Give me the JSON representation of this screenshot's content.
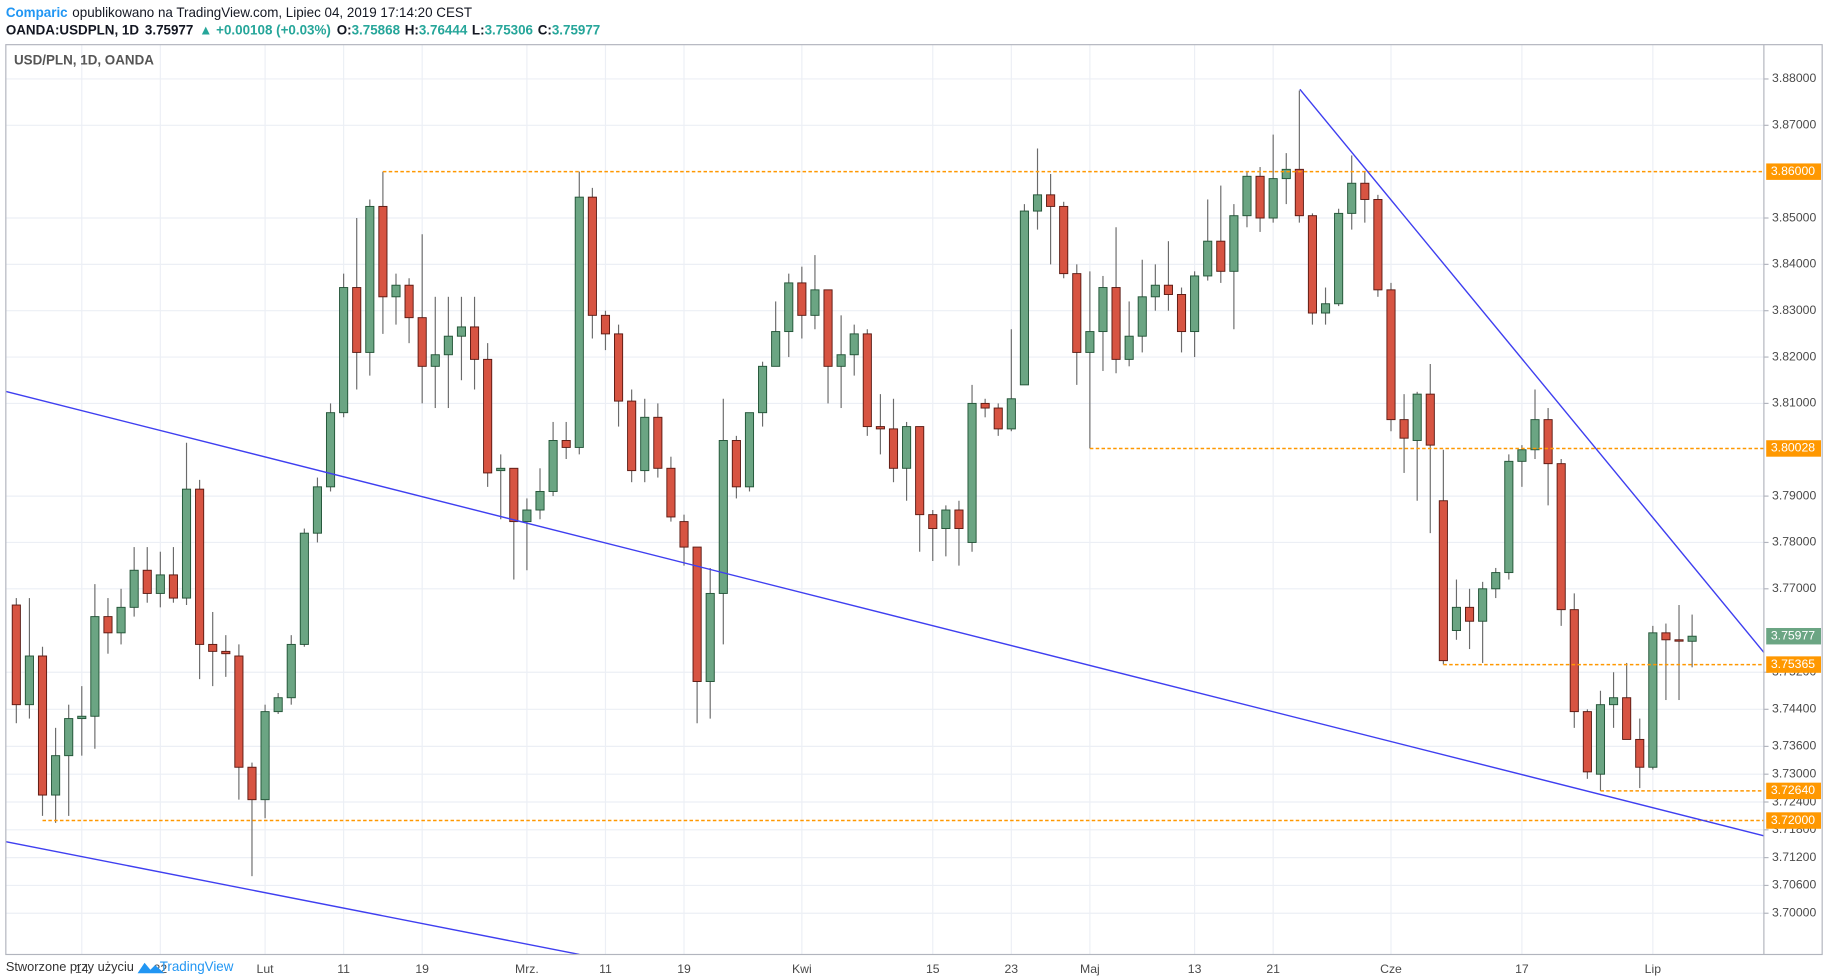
{
  "header": {
    "brand": "Comparic",
    "published": "opublikowano na TradingView.com, Lipiec 04, 2019 17:14:20 CEST",
    "symbol": "OANDA:USDPLN, 1D",
    "change": "▲ +0.00108 (+0.03%)",
    "o": "O:",
    "h": "H:",
    "l": "L:",
    "c": "C:"
  },
  "footer": {
    "text": "Stworzone przy użyciu",
    "logo": "TradingView"
  },
  "chart_data": {
    "type": "candlestick",
    "title": "USD/PLN, 1D, OANDA",
    "categories": [
      null,
      null,
      null,
      null,
      null,
      "14",
      null,
      null,
      null,
      null,
      null,
      "22",
      null,
      null,
      null,
      null,
      null,
      null,
      null,
      "Lut",
      null,
      null,
      null,
      null,
      null,
      "11",
      null,
      null,
      null,
      null,
      null,
      "19",
      null,
      null,
      null,
      null,
      null,
      null,
      null,
      "Mrz.",
      null,
      null,
      null,
      null,
      null,
      "11",
      null,
      null,
      null,
      null,
      null,
      "19",
      null,
      null,
      null,
      null,
      null,
      null,
      null,
      null,
      "Kwi",
      null,
      null,
      null,
      null,
      null,
      null,
      null,
      null,
      null,
      "15",
      null,
      null,
      null,
      null,
      null,
      "23",
      null,
      null,
      null,
      null,
      null,
      "Maj",
      null,
      null,
      null,
      null,
      null,
      null,
      null,
      "13",
      null,
      null,
      null,
      null,
      null,
      "21",
      null,
      null,
      null,
      null,
      null,
      null,
      null,
      null,
      "Cze",
      null,
      null,
      null,
      null,
      null,
      null,
      null,
      null,
      null,
      "17",
      null,
      null,
      null,
      null,
      null,
      null,
      null,
      null,
      null,
      "Lip",
      null,
      null,
      null
    ],
    "open": [
      3.7665,
      3.745,
      3.7555,
      3.7255,
      3.734,
      3.742,
      3.7425,
      3.764,
      3.7605,
      3.766,
      3.774,
      3.769,
      3.773,
      3.768,
      3.7915,
      3.758,
      3.7565,
      3.7555,
      3.7315,
      3.7245,
      3.7435,
      3.7465,
      3.758,
      3.782,
      3.792,
      3.808,
      3.835,
      3.821,
      3.8525,
      3.833,
      3.8355,
      3.8285,
      3.818,
      3.8205,
      3.8245,
      3.8265,
      3.8195,
      3.7955,
      3.796,
      3.7845,
      3.787,
      3.791,
      3.802,
      3.8005,
      3.8545,
      3.829,
      3.825,
      3.8105,
      3.7955,
      3.807,
      3.796,
      3.7845,
      3.779,
      3.75,
      3.769,
      3.802,
      3.792,
      3.808,
      3.818,
      3.8255,
      3.836,
      3.829,
      3.8345,
      3.818,
      3.8205,
      3.825,
      3.805,
      3.8045,
      3.796,
      3.805,
      3.786,
      3.783,
      3.787,
      3.78,
      3.81,
      3.809,
      3.8045,
      3.814,
      3.8515,
      3.855,
      3.8525,
      3.838,
      3.821,
      3.8255,
      3.835,
      3.8195,
      3.8245,
      3.833,
      3.8355,
      3.8335,
      3.8255,
      3.8375,
      3.845,
      3.8385,
      3.8505,
      3.859,
      3.85,
      3.8585,
      3.8605,
      3.8505,
      3.8295,
      3.8315,
      3.851,
      3.8575,
      3.854,
      3.8345,
      3.8065,
      3.802,
      3.812,
      3.789,
      3.761,
      3.766,
      3.763,
      3.77,
      3.7735,
      3.7975,
      3.8,
      3.8065,
      3.797,
      3.7655,
      3.7435,
      3.73,
      3.745,
      3.7465,
      3.7375,
      3.7315,
      3.7605,
      3.759,
      3.75868
    ],
    "high": [
      3.768,
      3.768,
      3.7575,
      3.74,
      3.745,
      3.749,
      3.771,
      3.768,
      3.77,
      3.779,
      3.779,
      3.778,
      3.779,
      3.8015,
      3.7935,
      3.765,
      3.76,
      3.758,
      3.7325,
      3.745,
      3.7475,
      3.76,
      3.783,
      3.794,
      3.81,
      3.838,
      3.85,
      3.854,
      3.86,
      3.838,
      3.837,
      3.8465,
      3.833,
      3.833,
      3.833,
      3.833,
      3.823,
      3.799,
      3.796,
      3.7895,
      3.796,
      3.806,
      3.806,
      3.86,
      3.8565,
      3.83,
      3.827,
      3.813,
      3.811,
      3.81,
      3.7985,
      3.786,
      3.779,
      3.7745,
      3.811,
      3.803,
      3.808,
      3.819,
      3.832,
      3.838,
      3.8395,
      3.842,
      3.8345,
      3.829,
      3.827,
      3.826,
      3.812,
      3.811,
      3.806,
      3.805,
      3.787,
      3.788,
      3.789,
      3.814,
      3.811,
      3.81,
      3.826,
      3.853,
      3.865,
      3.8595,
      3.8535,
      3.84,
      3.8385,
      3.8375,
      3.848,
      3.832,
      3.841,
      3.84,
      3.845,
      3.835,
      3.8385,
      3.854,
      3.857,
      3.853,
      3.86,
      3.861,
      3.868,
      3.864,
      3.8775,
      3.851,
      3.835,
      3.852,
      3.8635,
      3.86,
      3.855,
      3.836,
      3.812,
      3.8125,
      3.8185,
      3.8,
      3.772,
      3.77,
      3.7715,
      3.7745,
      3.799,
      3.801,
      3.813,
      3.809,
      3.798,
      3.769,
      3.744,
      3.748,
      3.752,
      3.754,
      3.742,
      3.762,
      3.7625,
      3.7665,
      3.76444
    ],
    "low": [
      3.741,
      3.742,
      3.721,
      3.7195,
      3.721,
      3.734,
      3.7355,
      3.756,
      3.758,
      3.764,
      3.767,
      3.766,
      3.767,
      3.7665,
      3.7505,
      3.749,
      3.751,
      3.7245,
      3.708,
      3.7205,
      3.743,
      3.745,
      3.7575,
      3.78,
      3.791,
      3.807,
      3.813,
      3.816,
      3.825,
      3.827,
      3.823,
      3.81,
      3.809,
      3.809,
      3.815,
      3.813,
      3.792,
      3.785,
      3.772,
      3.774,
      3.785,
      3.79,
      3.798,
      3.799,
      3.824,
      3.8215,
      3.805,
      3.793,
      3.793,
      3.794,
      3.7845,
      3.775,
      3.741,
      3.742,
      3.758,
      3.7895,
      3.791,
      3.805,
      3.818,
      3.82,
      3.824,
      3.826,
      3.81,
      3.809,
      3.816,
      3.803,
      3.799,
      3.793,
      3.789,
      3.778,
      3.776,
      3.777,
      3.775,
      3.778,
      3.807,
      3.803,
      3.804,
      3.814,
      3.8475,
      3.84,
      3.837,
      3.814,
      3.8003,
      3.817,
      3.8165,
      3.818,
      3.821,
      3.83,
      3.83,
      3.821,
      3.82,
      3.8365,
      3.836,
      3.826,
      3.848,
      3.847,
      3.849,
      3.853,
      3.849,
      3.827,
      3.827,
      3.831,
      3.8475,
      3.849,
      3.833,
      3.804,
      3.795,
      3.789,
      3.782,
      3.7537,
      3.759,
      3.757,
      3.754,
      3.768,
      3.772,
      3.792,
      3.798,
      3.788,
      3.762,
      3.74,
      3.729,
      3.7264,
      3.74,
      3.7375,
      3.727,
      3.731,
      3.746,
      3.746,
      3.75306
    ],
    "close": [
      3.745,
      3.7555,
      3.7255,
      3.734,
      3.742,
      3.7425,
      3.764,
      3.7605,
      3.766,
      3.774,
      3.769,
      3.773,
      3.768,
      3.7915,
      3.758,
      3.7565,
      3.756,
      3.7315,
      3.7245,
      3.7435,
      3.7465,
      3.758,
      3.782,
      3.792,
      3.808,
      3.835,
      3.821,
      3.8525,
      3.833,
      3.8355,
      3.8285,
      3.818,
      3.8205,
      3.8245,
      3.8265,
      3.8195,
      3.795,
      3.796,
      3.7845,
      3.787,
      3.791,
      3.802,
      3.8005,
      3.8545,
      3.829,
      3.825,
      3.8105,
      3.7955,
      3.807,
      3.796,
      3.7855,
      3.779,
      3.75,
      3.769,
      3.802,
      3.792,
      3.808,
      3.818,
      3.8255,
      3.836,
      3.829,
      3.8345,
      3.818,
      3.8205,
      3.825,
      3.805,
      3.8045,
      3.796,
      3.805,
      3.786,
      3.783,
      3.787,
      3.783,
      3.81,
      3.809,
      3.8045,
      3.811,
      3.8515,
      3.855,
      3.8525,
      3.838,
      3.821,
      3.8255,
      3.835,
      3.8195,
      3.8245,
      3.833,
      3.8355,
      3.8335,
      3.8255,
      3.8375,
      3.845,
      3.8385,
      3.8505,
      3.859,
      3.85,
      3.8585,
      3.8605,
      3.8505,
      3.8295,
      3.8315,
      3.851,
      3.8575,
      3.854,
      3.8345,
      3.8065,
      3.8025,
      3.812,
      3.801,
      3.7545,
      3.766,
      3.763,
      3.77,
      3.7735,
      3.7975,
      3.8,
      3.8065,
      3.797,
      3.7655,
      3.7435,
      3.7305,
      3.745,
      3.7465,
      3.7375,
      3.7315,
      3.7605,
      3.759,
      3.7587,
      3.75977
    ],
    "up_color": "#6ba583",
    "down_color": "#d75442",
    "ylim": [
      3.6911,
      3.8874
    ],
    "yticks": [
      {
        "value": 3.88,
        "label": "3.88000"
      },
      {
        "value": 3.87,
        "label": "3.87000"
      },
      {
        "value": 3.85,
        "label": "3.85000"
      },
      {
        "value": 3.84,
        "label": "3.84000"
      },
      {
        "value": 3.83,
        "label": "3.83000"
      },
      {
        "value": 3.82,
        "label": "3.82000"
      },
      {
        "value": 3.81,
        "label": "3.81000"
      },
      {
        "value": 3.79,
        "label": "3.79000"
      },
      {
        "value": 3.78,
        "label": "3.78000"
      },
      {
        "value": 3.77,
        "label": "3.77000"
      },
      {
        "value": 3.752,
        "label": "3.75200"
      },
      {
        "value": 3.744,
        "label": "3.74400"
      },
      {
        "value": 3.736,
        "label": "3.73600"
      },
      {
        "value": 3.73,
        "label": "3.73000"
      },
      {
        "value": 3.724,
        "label": "3.72400"
      },
      {
        "value": 3.718,
        "label": "3.71800"
      },
      {
        "value": 3.712,
        "label": "3.71200"
      },
      {
        "value": 3.706,
        "label": "3.70600"
      },
      {
        "value": 3.7,
        "label": "3.70000"
      }
    ],
    "levels": [
      {
        "value": 3.86,
        "label": "3.86000"
      },
      {
        "value": 3.80028,
        "label": "3.80028"
      },
      {
        "value": 3.75365,
        "label": "3.75365"
      },
      {
        "value": 3.7264,
        "label": "3.72640"
      },
      {
        "value": 3.72,
        "label": "3.72000"
      }
    ],
    "level_color": "#ff9800",
    "grid": true
  }
}
